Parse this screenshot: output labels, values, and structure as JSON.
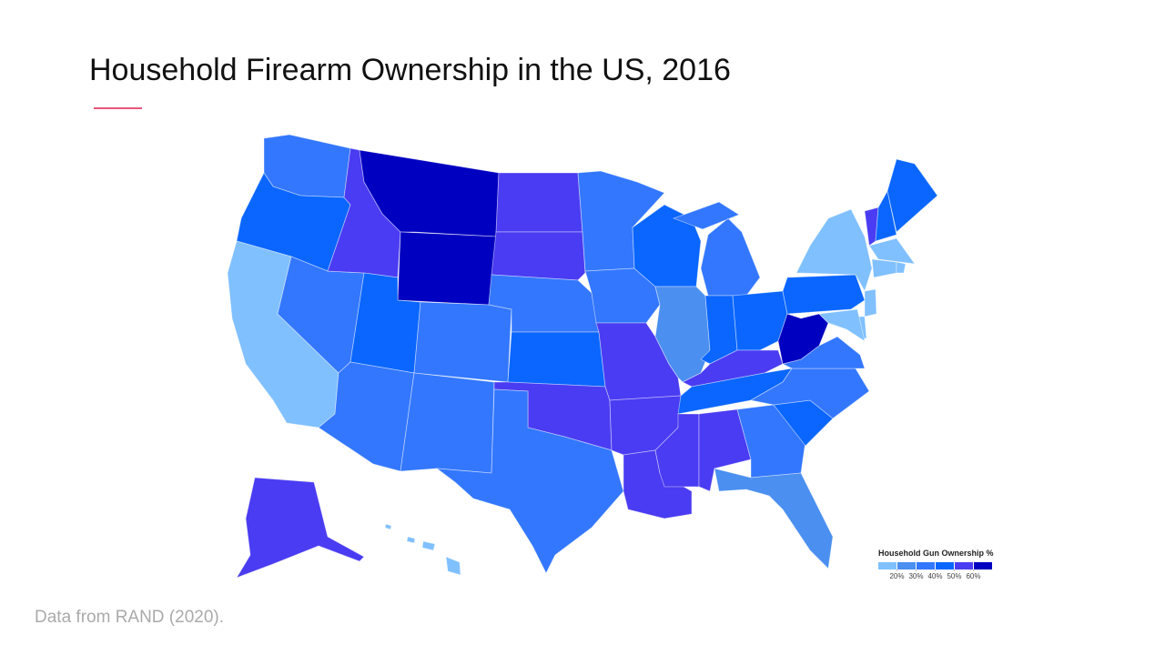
{
  "chart_data": {
    "type": "choropleth",
    "title": "Household Firearm Ownership in the US, 2016",
    "source": "Data from RAND (2020).",
    "values": [
      35,
      45,
      15,
      35,
      55,
      65,
      65,
      45,
      35,
      35,
      35,
      55,
      55,
      35,
      45,
      55,
      35,
      35,
      35,
      55,
      55,
      55,
      45,
      25,
      35,
      45,
      45,
      55,
      45,
      55,
      55,
      35,
      25,
      45,
      35,
      35,
      65,
      45,
      15,
      55,
      45,
      45,
      15,
      15,
      15,
      15,
      15,
      15,
      55,
      15
    ],
    "legend": {
      "title": "Household Gun Ownership %",
      "colors": [
        "#80c0ff",
        "#4b8ff0",
        "#3377ff",
        "#0a66ff",
        "#4a3cf2",
        "#0000c0"
      ],
      "ticks": [
        {
          "value": 20,
          "label": "20%"
        },
        {
          "value": 30,
          "label": "30%"
        },
        {
          "value": 40,
          "label": "40%"
        },
        {
          "value": 50,
          "label": "50%"
        },
        {
          "value": 60,
          "label": "60%"
        }
      ]
    }
  }
}
